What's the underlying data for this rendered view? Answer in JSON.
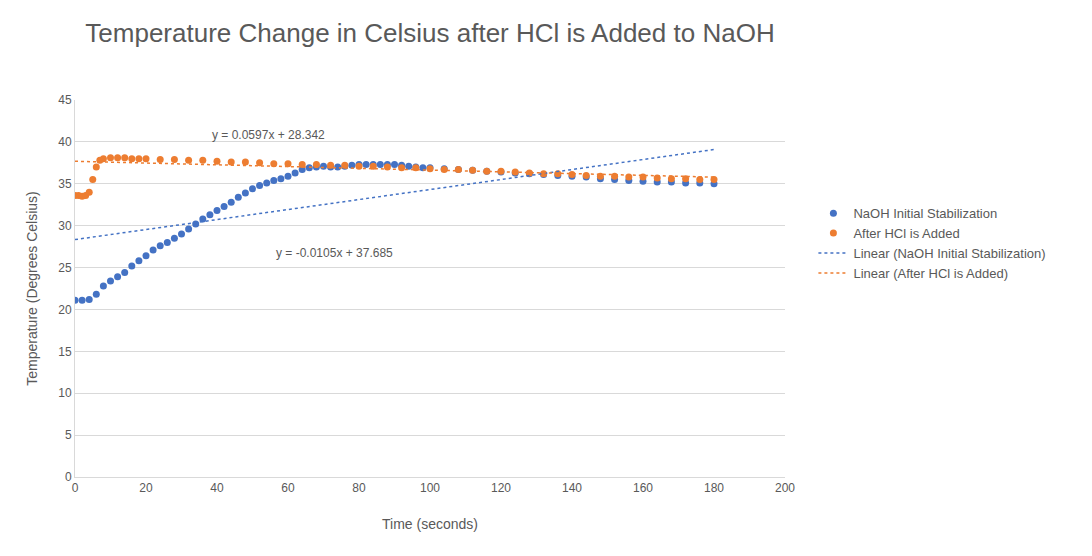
{
  "chart_data": {
    "type": "scatter",
    "title": "Temperature Change in Celsius after HCl is Added to NaOH",
    "x_label": "Time (seconds)",
    "y_label": "Temperature (Degrees Celsius)",
    "xlim": [
      0,
      200
    ],
    "xticks": [
      0,
      20,
      40,
      60,
      80,
      100,
      120,
      140,
      160,
      180,
      200
    ],
    "ylim": [
      0,
      45
    ],
    "yticks": [
      0,
      5,
      10,
      15,
      20,
      25,
      30,
      35,
      40,
      45
    ],
    "grid": true,
    "legend": "right",
    "series": [
      {
        "name": "NaOH Initial Stabilization",
        "color": "#4472c4",
        "marker": "circle",
        "x": [
          0,
          2,
          4,
          6,
          8,
          10,
          12,
          14,
          16,
          18,
          20,
          22,
          24,
          26,
          28,
          30,
          32,
          34,
          36,
          38,
          40,
          42,
          44,
          46,
          48,
          50,
          52,
          54,
          56,
          58,
          60,
          62,
          64,
          66,
          68,
          70,
          72,
          74,
          76,
          78,
          80,
          82,
          84,
          86,
          88,
          90,
          92,
          94,
          96,
          98,
          100,
          104,
          108,
          112,
          116,
          120,
          124,
          128,
          132,
          136,
          140,
          144,
          148,
          152,
          156,
          160,
          164,
          168,
          172,
          176,
          180
        ],
        "values": [
          21.1,
          21.1,
          21.2,
          21.8,
          22.8,
          23.4,
          23.9,
          24.4,
          25.2,
          25.8,
          26.4,
          27.1,
          27.6,
          28.0,
          28.5,
          29.0,
          29.6,
          30.2,
          30.8,
          31.3,
          31.8,
          32.3,
          32.8,
          33.4,
          33.9,
          34.4,
          34.8,
          35.1,
          35.4,
          35.6,
          35.9,
          36.3,
          36.7,
          36.9,
          37.0,
          37.1,
          37.0,
          37.0,
          37.1,
          37.2,
          37.3,
          37.3,
          37.3,
          37.3,
          37.3,
          37.3,
          37.2,
          37.1,
          37.0,
          36.9,
          36.9,
          36.8,
          36.7,
          36.6,
          36.5,
          36.4,
          36.3,
          36.2,
          36.1,
          36.0,
          35.9,
          35.8,
          35.6,
          35.5,
          35.4,
          35.3,
          35.2,
          35.2,
          35.1,
          35.1,
          35.0
        ],
        "trendline": {
          "name": "Linear (NaOH Initial Stabilization)",
          "line_style": "dot",
          "slope": 0.0597,
          "intercept": 28.342,
          "label": "y = 0.0597x + 28.342"
        }
      },
      {
        "name": "After HCl is Added",
        "color": "#ed7d31",
        "marker": "circle",
        "x": [
          0,
          1,
          2,
          3,
          4,
          5,
          6,
          7,
          8,
          10,
          12,
          14,
          16,
          18,
          20,
          24,
          28,
          32,
          36,
          40,
          44,
          48,
          52,
          56,
          60,
          64,
          68,
          72,
          76,
          80,
          84,
          88,
          92,
          96,
          100,
          104,
          108,
          112,
          116,
          120,
          124,
          128,
          132,
          136,
          140,
          144,
          148,
          152,
          156,
          160,
          164,
          168,
          172,
          176,
          180
        ],
        "values": [
          33.6,
          33.6,
          33.5,
          33.6,
          34.0,
          35.5,
          37.0,
          37.8,
          38.0,
          38.1,
          38.1,
          38.1,
          38.0,
          38.0,
          38.0,
          37.9,
          37.9,
          37.8,
          37.8,
          37.7,
          37.6,
          37.6,
          37.5,
          37.4,
          37.4,
          37.3,
          37.3,
          37.2,
          37.2,
          37.1,
          37.1,
          37.0,
          36.9,
          36.9,
          36.8,
          36.7,
          36.7,
          36.6,
          36.5,
          36.5,
          36.4,
          36.3,
          36.2,
          36.2,
          36.1,
          36.0,
          35.9,
          35.9,
          35.8,
          35.8,
          35.7,
          35.6,
          35.6,
          35.5,
          35.5
        ],
        "trendline": {
          "name": "Linear (After HCl is Added)",
          "line_style": "dot",
          "slope": -0.0105,
          "intercept": 37.685,
          "label": "y = -0.0105x + 37.685"
        }
      }
    ]
  }
}
